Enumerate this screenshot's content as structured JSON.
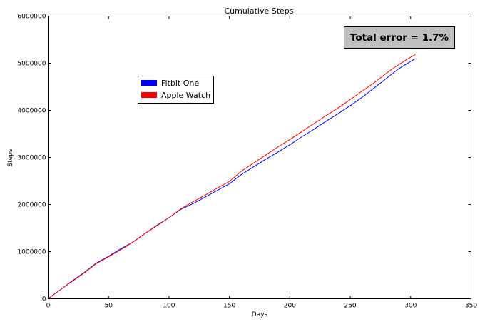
{
  "chart_data": {
    "type": "line",
    "title": "Cumulative Steps",
    "xlabel": "Days",
    "ylabel": "Steps",
    "xlim": [
      0,
      350
    ],
    "ylim": [
      0,
      6000000
    ],
    "xticks": [
      0,
      50,
      100,
      150,
      200,
      250,
      300,
      350
    ],
    "yticks": [
      0,
      1000000,
      2000000,
      3000000,
      4000000,
      5000000,
      6000000
    ],
    "grid": false,
    "legend_position": "upper-left",
    "annotation": "Total error = 1.7%",
    "series": [
      {
        "name": "Fitbit One",
        "color": "#0000ff",
        "x": [
          0,
          10,
          20,
          30,
          40,
          50,
          60,
          70,
          80,
          90,
          100,
          110,
          120,
          130,
          140,
          150,
          160,
          170,
          180,
          190,
          200,
          210,
          220,
          230,
          240,
          250,
          260,
          270,
          280,
          290,
          300,
          304
        ],
        "y": [
          0,
          190000,
          380000,
          560000,
          760000,
          900000,
          1060000,
          1200000,
          1380000,
          1560000,
          1720000,
          1900000,
          2020000,
          2160000,
          2300000,
          2440000,
          2640000,
          2800000,
          2960000,
          3110000,
          3270000,
          3440000,
          3600000,
          3770000,
          3930000,
          4100000,
          4280000,
          4480000,
          4680000,
          4880000,
          5040000,
          5100000
        ]
      },
      {
        "name": "Apple Watch",
        "color": "#ff0000",
        "x": [
          0,
          10,
          20,
          30,
          40,
          50,
          60,
          70,
          80,
          90,
          100,
          110,
          120,
          130,
          140,
          150,
          160,
          170,
          180,
          190,
          200,
          210,
          220,
          230,
          240,
          250,
          260,
          270,
          280,
          290,
          300,
          304
        ],
        "y": [
          0,
          190000,
          370000,
          550000,
          750000,
          890000,
          1040000,
          1200000,
          1380000,
          1550000,
          1720000,
          1910000,
          2060000,
          2200000,
          2350000,
          2490000,
          2710000,
          2880000,
          3050000,
          3220000,
          3380000,
          3550000,
          3720000,
          3890000,
          4050000,
          4230000,
          4410000,
          4590000,
          4790000,
          4970000,
          5130000,
          5180000
        ]
      }
    ]
  }
}
